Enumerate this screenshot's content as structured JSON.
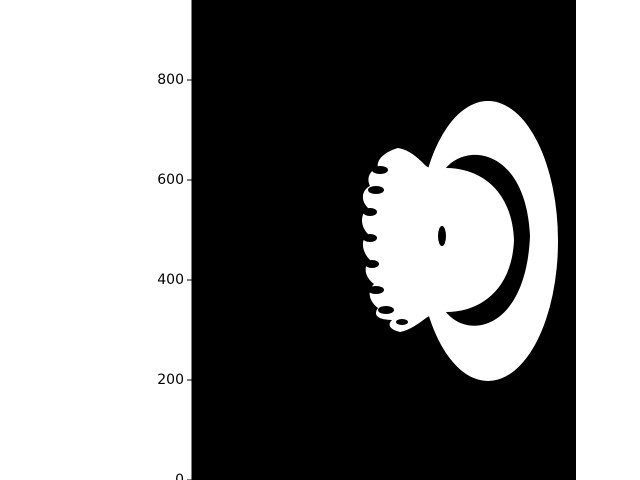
{
  "chart_data": {
    "type": "heatmap",
    "colormap": {
      "low": "#000000",
      "high": "#ffffff"
    },
    "ylim": [
      0,
      960
    ],
    "yticks": [
      0,
      200,
      400,
      600,
      800
    ],
    "ytick_labels": [
      "0",
      "200",
      "400",
      "600",
      "800"
    ],
    "xticks_visible": false,
    "grid": false
  }
}
